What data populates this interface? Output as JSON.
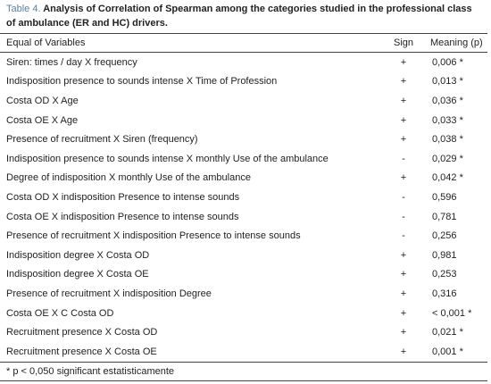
{
  "caption": {
    "label": "Table 4.",
    "title": "Analysis of Correlation of Spearman among the categories studied in the professional class of ambulance (ER and HC) drivers."
  },
  "table": {
    "header": [
      "Equal of Variables",
      "Sign",
      "Meaning (p)"
    ],
    "rows": [
      [
        "Siren: times / day X frequency",
        "+",
        "0,006 *"
      ],
      [
        "Indisposition presence to sounds intense X Time of Profession",
        "+",
        "0,013 *"
      ],
      [
        "Costa OD X Age",
        "+",
        "0,036 *"
      ],
      [
        "Costa OE X Age",
        "+",
        "0,033 *"
      ],
      [
        "Presence of recruitment X Siren (frequency)",
        "+",
        "0,038 *"
      ],
      [
        "Indisposition presence to sounds intense X monthly Use of the ambulance",
        "-",
        "0,029 *"
      ],
      [
        "Degree of indisposition X monthly Use of the ambulance",
        "+",
        "0,042 *"
      ],
      [
        "Costa OD X indisposition Presence to intense sounds",
        "-",
        "0,596"
      ],
      [
        "Costa OE X indisposition Presence to intense sounds",
        "-",
        "0,781"
      ],
      [
        "Presence of recruitment X indisposition Presence to intense sounds",
        "-",
        "0,256"
      ],
      [
        "Indisposition degree X Costa OD",
        "+",
        "0,981"
      ],
      [
        "Indisposition degree X Costa OE",
        "+",
        "0,253"
      ],
      [
        "Presence of recruitment X indisposition Degree",
        "+",
        "0,316"
      ],
      [
        "Costa OE X C Costa OD",
        "+",
        "< 0,001 *"
      ],
      [
        "Recruitment presence X Costa OD",
        "+",
        "0,021 *"
      ],
      [
        "Recruitment presence X Costa OE",
        "+",
        "0,001 *"
      ]
    ],
    "footnote": "* p < 0,050 significant estatisticamente"
  }
}
